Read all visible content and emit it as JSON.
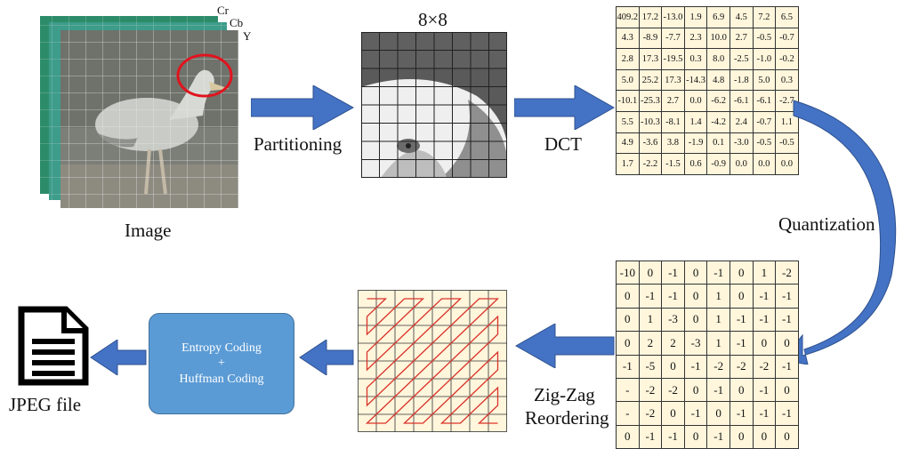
{
  "labels": {
    "image": "Image",
    "cr": "Cr",
    "cb": "Cb",
    "y": "Y",
    "block_size": "8×8",
    "partitioning": "Partitioning",
    "dct": "DCT",
    "quantization": "Quantization",
    "zigzag_line1": "Zig-Zag",
    "zigzag_line2": "Reordering",
    "entropy_line1": "Entropy Coding",
    "entropy_line2": "+",
    "entropy_line3": "Huffman Coding",
    "jpeg_file": "JPEG file"
  },
  "dct_matrix": [
    [
      "409.2",
      "17.2",
      "-13.0",
      "1.9",
      "6.9",
      "4.5",
      "7.2",
      "6.5"
    ],
    [
      "4.3",
      "-8.9",
      "-7.7",
      "2.3",
      "10.0",
      "2.7",
      "-0.5",
      "-0.7"
    ],
    [
      "2.8",
      "17.3",
      "-19.5",
      "0.3",
      "8.0",
      "-2.5",
      "-1.0",
      "-0.2"
    ],
    [
      "5.0",
      "25.2",
      "17.3",
      "-14.3",
      "4.8",
      "-1.8",
      "5.0",
      "0.3"
    ],
    [
      "-10.1",
      "-25.3",
      "2.7",
      "0.0",
      "-6.2",
      "-6.1",
      "-6.1",
      "-2.7"
    ],
    [
      "5.5",
      "-10.3",
      "-8.1",
      "1.4",
      "-4.2",
      "2.4",
      "-0.7",
      "1.1"
    ],
    [
      "4.9",
      "-3.6",
      "3.8",
      "-1.9",
      "0.1",
      "-3.0",
      "-0.5",
      "-0.5"
    ],
    [
      "1.7",
      "-2.2",
      "-1.5",
      "0.6",
      "-0.9",
      "0.0",
      "0.0",
      "0.0"
    ]
  ],
  "quantized_matrix": [
    [
      "-10",
      "0",
      "-1",
      "0",
      "-1",
      "0",
      "1",
      "-2"
    ],
    [
      "0",
      "-1",
      "-1",
      "0",
      "1",
      "0",
      "-1",
      "-1"
    ],
    [
      "0",
      "1",
      "-3",
      "0",
      "1",
      "-1",
      "-1",
      "-1"
    ],
    [
      "0",
      "2",
      "2",
      "-3",
      "1",
      "-1",
      "0",
      "0"
    ],
    [
      "-1",
      "-5",
      "0",
      "-1",
      "-2",
      "-2",
      "-2",
      "-1"
    ],
    [
      "-",
      "-2",
      "-2",
      "0",
      "-1",
      "0",
      "-1",
      "0"
    ],
    [
      "-",
      "-2",
      "0",
      "-1",
      "0",
      "-1",
      "-1",
      "-1"
    ],
    [
      "0",
      "-1",
      "-1",
      "0",
      "-1",
      "0",
      "0",
      "0"
    ]
  ],
  "colors": {
    "arrow_blue": "#4472c4",
    "matrix_bg": "#fff6dc",
    "zigzag_line": "#d9342b",
    "highlight_circle": "#e0141e",
    "entropy_box": "#5b9bd5"
  },
  "icons": {
    "image_stack": "layered-photo-icon",
    "file": "document-icon"
  }
}
